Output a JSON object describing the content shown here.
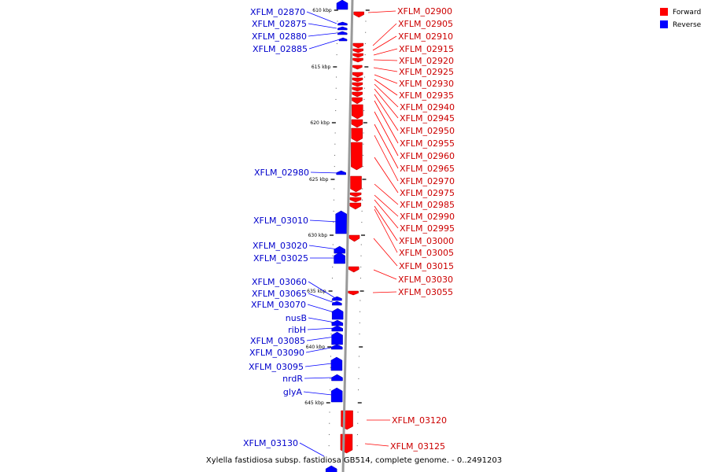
{
  "colors": {
    "forward": "#ff0000",
    "reverse": "#0000ff",
    "forward_label": "#cc0000",
    "reverse_label": "#0000cc",
    "backbone": "#888888"
  },
  "legend": {
    "items": [
      {
        "label": "Forward",
        "color": "#ff0000"
      },
      {
        "label": "Reverse",
        "color": "#0000ff"
      }
    ]
  },
  "caption": "Xylella fastidiosa subsp. fastidiosa GB514, complete genome. - 0..2491203",
  "scale": {
    "ticks": [
      "610 kbp",
      "615 kbp",
      "620 kbp",
      "625 kbp",
      "630 kbp",
      "635 kbp",
      "640 kbp",
      "645 kbp"
    ]
  },
  "genes": {
    "forward": [
      "XFLM_02900",
      "XFLM_02905",
      "XFLM_02910",
      "XFLM_02915",
      "XFLM_02920",
      "XFLM_02925",
      "XFLM_02930",
      "XFLM_02935",
      "XFLM_02940",
      "XFLM_02945",
      "XFLM_02950",
      "XFLM_02955",
      "XFLM_02960",
      "XFLM_02965",
      "XFLM_02970",
      "XFLM_02975",
      "XFLM_02985",
      "XFLM_02990",
      "XFLM_02995",
      "XFLM_03000",
      "XFLM_03005",
      "XFLM_03015",
      "XFLM_03030",
      "XFLM_03055",
      "XFLM_03120",
      "XFLM_03125"
    ],
    "reverse": [
      "XFLM_02870",
      "XFLM_02875",
      "XFLM_02880",
      "XFLM_02885",
      "XFLM_02980",
      "XFLM_03010",
      "XFLM_03020",
      "XFLM_03025",
      "XFLM_03060",
      "XFLM_03065",
      "XFLM_03070",
      "nusB",
      "ribH",
      "XFLM_03085",
      "XFLM_03090",
      "XFLM_03095",
      "nrdR",
      "glyA",
      "XFLM_03130"
    ]
  }
}
